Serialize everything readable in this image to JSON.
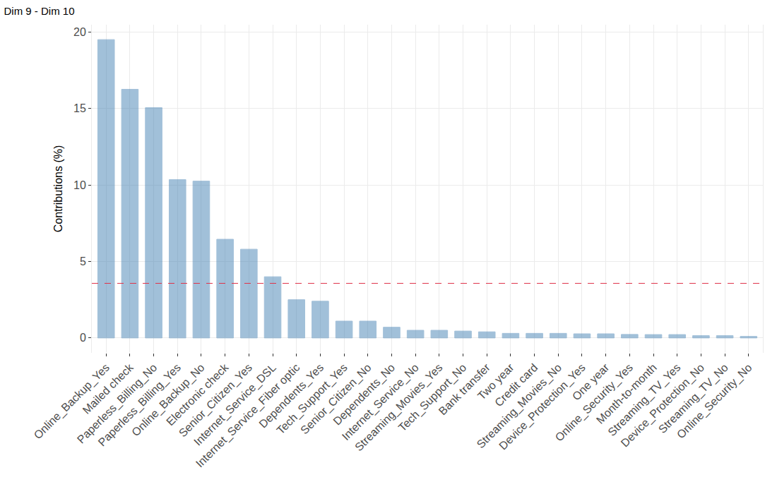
{
  "chart_data": {
    "type": "bar",
    "title": "Dim 9 - Dim 10",
    "y_label": "Contributions (%)",
    "categories": [
      "Online_Backup_Yes",
      "Mailed check",
      "Paperless_Billing_No",
      "Paperless_Billing_Yes",
      "Online_Backup_No",
      "Electronic check",
      "Senior_Citizen_Yes",
      "Internet_Service_DSL",
      "Internet_Service_Fiber optic",
      "Dependents_Yes",
      "Tech_Support_Yes",
      "Senior_Citizen_No",
      "Dependents_No",
      "Internet_Service_No",
      "Streaming_Movies_Yes",
      "Tech_Support_No",
      "Bank transfer",
      "Two year",
      "Credit card",
      "Streaming_Movies_No",
      "Device_Protection_Yes",
      "One year",
      "Online_Security_Yes",
      "Month-to-month",
      "Streaming_TV_Yes",
      "Device_Protection_No",
      "Streaming_TV_No",
      "Online_Security_No"
    ],
    "values": [
      19.5,
      16.25,
      15.05,
      10.35,
      10.25,
      6.45,
      5.8,
      4.0,
      2.5,
      2.4,
      1.1,
      1.1,
      0.7,
      0.5,
      0.5,
      0.45,
      0.4,
      0.3,
      0.3,
      0.3,
      0.27,
      0.27,
      0.23,
      0.22,
      0.22,
      0.15,
      0.15,
      0.1
    ],
    "reference_line": 3.57,
    "color": "#4682b4",
    "ylim": [
      -0.975,
      20.475
    ],
    "yticks": [
      0,
      5,
      10,
      15,
      20
    ],
    "grid": true
  }
}
